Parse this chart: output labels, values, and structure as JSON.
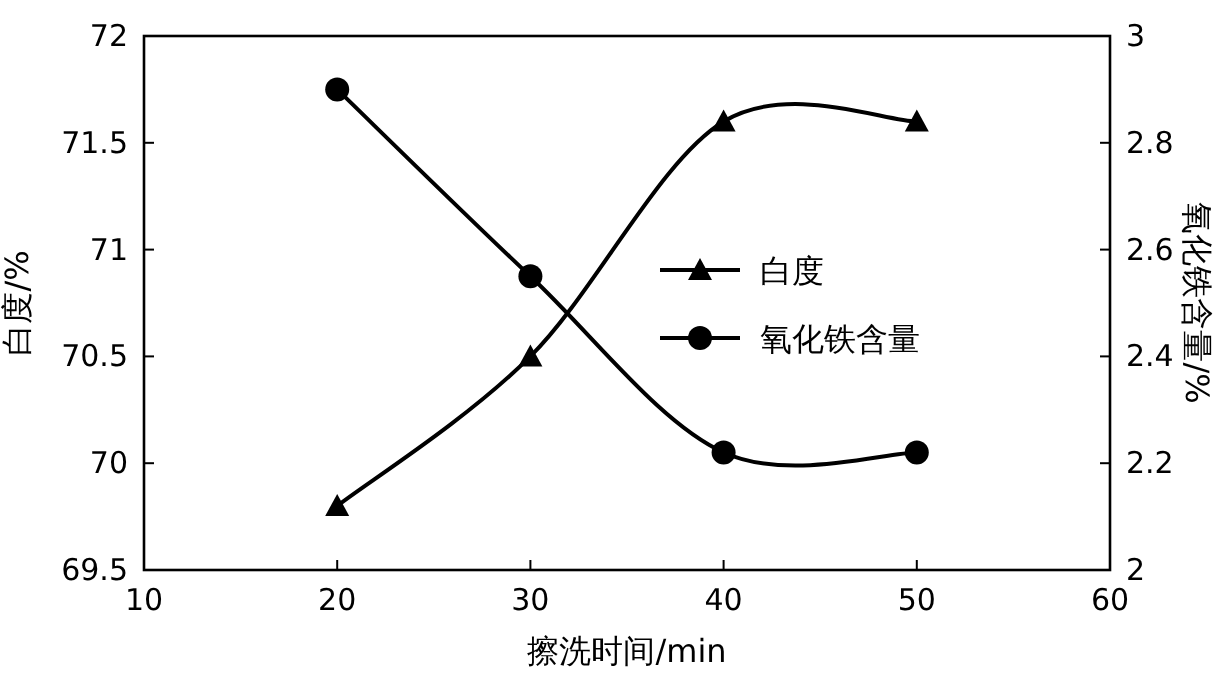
{
  "chart_data": {
    "type": "line",
    "xlabel": "擦洗时间/min",
    "ylabel": "白度/%",
    "y2label": "氧化铁含量/%",
    "x": [
      20,
      30,
      40,
      50
    ],
    "series": [
      {
        "name": "白度",
        "color": "#000000",
        "values": [
          69.8,
          70.5,
          71.6,
          71.6
        ],
        "marker": "triangle"
      },
      {
        "name": "氧化铁含量",
        "color": "#000000",
        "values": [
          2.9,
          2.55,
          2.22,
          2.22
        ],
        "marker": "circle",
        "axis": "y2"
      }
    ],
    "xlim": [
      10,
      60
    ],
    "xticks": [
      10,
      20,
      30,
      40,
      50,
      60
    ],
    "ylim": [
      69.5,
      72
    ],
    "yticks": [
      {
        "value": 69.5,
        "label": "69.5"
      },
      70,
      {
        "value": 70.5,
        "label": "70.5"
      },
      71,
      {
        "value": 71.5,
        "label": "71.5"
      },
      72
    ],
    "y2lim": [
      2,
      3
    ],
    "y2ticks": [
      2,
      {
        "value": 2.2,
        "label": "2.2"
      },
      {
        "value": 2.4,
        "label": "2.4"
      },
      {
        "value": 2.6,
        "label": "2.6"
      },
      {
        "value": 2.8,
        "label": "2.8"
      },
      3
    ],
    "legend": "right",
    "grid": false,
    "line_style": "solid"
  }
}
